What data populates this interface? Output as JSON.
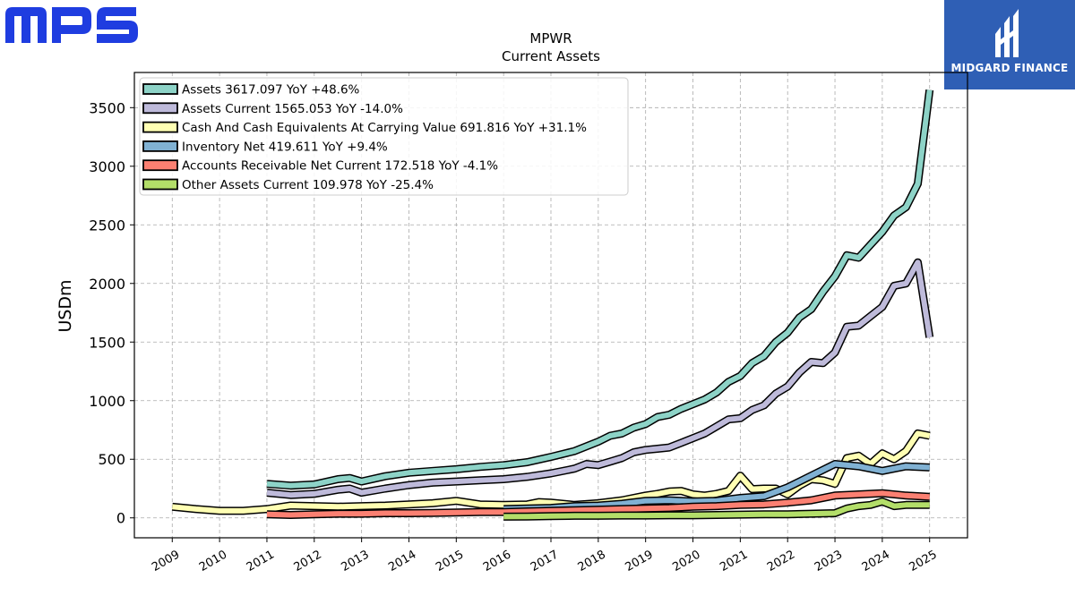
{
  "logos": {
    "mps": "MPS",
    "midgard": "MIDGARD FINANCE"
  },
  "chart_data": {
    "type": "line",
    "title": "MPWR",
    "subtitle": "Current  Assets",
    "xlabel": "",
    "ylabel": "USDm",
    "ylim": [
      -170,
      3800
    ],
    "xlim": [
      2008.2,
      2025.8
    ],
    "yticks": [
      0,
      500,
      1000,
      1500,
      2000,
      2500,
      3000,
      3500
    ],
    "xticks": [
      2009,
      2010,
      2011,
      2012,
      2013,
      2014,
      2015,
      2016,
      2017,
      2018,
      2019,
      2020,
      2021,
      2022,
      2023,
      2024,
      2025
    ],
    "grid": true,
    "legend_position": "top-left",
    "series": [
      {
        "name": "Assets  3617.097 YoY +48.6%",
        "color": "#8dd3c7",
        "points": [
          [
            2011.0,
            290
          ],
          [
            2011.5,
            275
          ],
          [
            2012.0,
            285
          ],
          [
            2012.5,
            330
          ],
          [
            2012.75,
            340
          ],
          [
            2013.0,
            310
          ],
          [
            2013.5,
            355
          ],
          [
            2014.0,
            385
          ],
          [
            2014.5,
            400
          ],
          [
            2015.0,
            415
          ],
          [
            2015.5,
            435
          ],
          [
            2016.0,
            450
          ],
          [
            2016.5,
            475
          ],
          [
            2017.0,
            520
          ],
          [
            2017.5,
            570
          ],
          [
            2018.0,
            650
          ],
          [
            2018.25,
            700
          ],
          [
            2018.5,
            720
          ],
          [
            2018.75,
            770
          ],
          [
            2019.0,
            800
          ],
          [
            2019.25,
            860
          ],
          [
            2019.5,
            880
          ],
          [
            2019.75,
            930
          ],
          [
            2020.0,
            970
          ],
          [
            2020.25,
            1010
          ],
          [
            2020.5,
            1070
          ],
          [
            2020.75,
            1160
          ],
          [
            2021.0,
            1210
          ],
          [
            2021.25,
            1320
          ],
          [
            2021.5,
            1380
          ],
          [
            2021.75,
            1500
          ],
          [
            2022.0,
            1580
          ],
          [
            2022.25,
            1710
          ],
          [
            2022.5,
            1780
          ],
          [
            2022.75,
            1930
          ],
          [
            2023.0,
            2060
          ],
          [
            2023.25,
            2240
          ],
          [
            2023.5,
            2220
          ],
          [
            2023.75,
            2330
          ],
          [
            2024.0,
            2440
          ],
          [
            2024.25,
            2580
          ],
          [
            2024.5,
            2650
          ],
          [
            2024.75,
            2850
          ],
          [
            2025.0,
            3650
          ]
        ]
      },
      {
        "name": "Assets Current  1565.053 YoY -14.0%",
        "color": "#bebada",
        "points": [
          [
            2011.0,
            215
          ],
          [
            2011.5,
            195
          ],
          [
            2012.0,
            205
          ],
          [
            2012.5,
            240
          ],
          [
            2012.75,
            250
          ],
          [
            2013.0,
            215
          ],
          [
            2013.5,
            250
          ],
          [
            2014.0,
            280
          ],
          [
            2014.5,
            300
          ],
          [
            2015.0,
            310
          ],
          [
            2015.5,
            320
          ],
          [
            2016.0,
            330
          ],
          [
            2016.5,
            350
          ],
          [
            2017.0,
            380
          ],
          [
            2017.5,
            420
          ],
          [
            2017.75,
            460
          ],
          [
            2018.0,
            450
          ],
          [
            2018.25,
            480
          ],
          [
            2018.5,
            510
          ],
          [
            2018.75,
            560
          ],
          [
            2019.0,
            580
          ],
          [
            2019.25,
            590
          ],
          [
            2019.5,
            600
          ],
          [
            2019.75,
            640
          ],
          [
            2020.0,
            680
          ],
          [
            2020.25,
            720
          ],
          [
            2020.5,
            780
          ],
          [
            2020.75,
            840
          ],
          [
            2021.0,
            850
          ],
          [
            2021.25,
            920
          ],
          [
            2021.5,
            960
          ],
          [
            2021.75,
            1060
          ],
          [
            2022.0,
            1120
          ],
          [
            2022.25,
            1240
          ],
          [
            2022.5,
            1330
          ],
          [
            2022.75,
            1320
          ],
          [
            2023.0,
            1410
          ],
          [
            2023.25,
            1630
          ],
          [
            2023.5,
            1640
          ],
          [
            2023.75,
            1720
          ],
          [
            2024.0,
            1800
          ],
          [
            2024.25,
            1980
          ],
          [
            2024.5,
            2000
          ],
          [
            2024.75,
            2180
          ],
          [
            2025.0,
            1540
          ]
        ]
      },
      {
        "name": "Cash And Cash Equivalents At Carrying Value  691.816 YoY +31.1%",
        "color": "#ffffb3",
        "points": [
          [
            2009.0,
            95
          ],
          [
            2009.5,
            75
          ],
          [
            2010.0,
            60
          ],
          [
            2010.5,
            60
          ],
          [
            2011.0,
            75
          ],
          [
            2011.5,
            105
          ],
          [
            2012.0,
            100
          ],
          [
            2012.5,
            95
          ],
          [
            2013.0,
            100
          ],
          [
            2013.5,
            105
          ],
          [
            2014.0,
            115
          ],
          [
            2014.5,
            125
          ],
          [
            2015.0,
            145
          ],
          [
            2015.5,
            115
          ],
          [
            2016.0,
            110
          ],
          [
            2016.5,
            115
          ],
          [
            2016.75,
            135
          ],
          [
            2017.0,
            130
          ],
          [
            2017.5,
            110
          ],
          [
            2018.0,
            125
          ],
          [
            2018.5,
            150
          ],
          [
            2019.0,
            190
          ],
          [
            2019.25,
            205
          ],
          [
            2019.5,
            225
          ],
          [
            2019.75,
            230
          ],
          [
            2020.0,
            200
          ],
          [
            2020.25,
            190
          ],
          [
            2020.5,
            205
          ],
          [
            2020.75,
            230
          ],
          [
            2021.0,
            360
          ],
          [
            2021.25,
            245
          ],
          [
            2021.5,
            250
          ],
          [
            2021.75,
            250
          ],
          [
            2022.0,
            200
          ],
          [
            2022.25,
            275
          ],
          [
            2022.5,
            330
          ],
          [
            2022.75,
            320
          ],
          [
            2023.0,
            290
          ],
          [
            2023.25,
            510
          ],
          [
            2023.5,
            530
          ],
          [
            2023.75,
            460
          ],
          [
            2024.0,
            550
          ],
          [
            2024.25,
            500
          ],
          [
            2024.5,
            570
          ],
          [
            2024.75,
            720
          ],
          [
            2025.0,
            700
          ]
        ]
      },
      {
        "name": "Inventory Net  419.611 YoY +9.4%",
        "color": "#80b1d3",
        "points": [
          [
            2016.0,
            75
          ],
          [
            2016.5,
            80
          ],
          [
            2017.0,
            85
          ],
          [
            2017.5,
            100
          ],
          [
            2018.0,
            105
          ],
          [
            2018.5,
            120
          ],
          [
            2019.0,
            145
          ],
          [
            2019.5,
            150
          ],
          [
            2020.0,
            140
          ],
          [
            2020.5,
            145
          ],
          [
            2021.0,
            170
          ],
          [
            2021.5,
            185
          ],
          [
            2022.0,
            260
          ],
          [
            2022.5,
            360
          ],
          [
            2023.0,
            460
          ],
          [
            2023.5,
            440
          ],
          [
            2024.0,
            400
          ],
          [
            2024.5,
            440
          ],
          [
            2025.0,
            430
          ]
        ]
      },
      {
        "name": "Accounts Receivable Net Current  172.518 YoY -4.1%",
        "color": "#fb8072",
        "points": [
          [
            2011.0,
            30
          ],
          [
            2011.5,
            25
          ],
          [
            2012.0,
            30
          ],
          [
            2012.5,
            35
          ],
          [
            2013.0,
            35
          ],
          [
            2013.5,
            40
          ],
          [
            2014.0,
            40
          ],
          [
            2014.5,
            42
          ],
          [
            2015.0,
            45
          ],
          [
            2015.5,
            50
          ],
          [
            2016.0,
            50
          ],
          [
            2016.5,
            55
          ],
          [
            2017.0,
            60
          ],
          [
            2017.5,
            65
          ],
          [
            2018.0,
            70
          ],
          [
            2018.5,
            75
          ],
          [
            2019.0,
            80
          ],
          [
            2019.5,
            85
          ],
          [
            2020.0,
            95
          ],
          [
            2020.5,
            100
          ],
          [
            2021.0,
            110
          ],
          [
            2021.5,
            115
          ],
          [
            2022.0,
            130
          ],
          [
            2022.5,
            150
          ],
          [
            2023.0,
            190
          ],
          [
            2023.5,
            200
          ],
          [
            2024.0,
            210
          ],
          [
            2024.5,
            190
          ],
          [
            2025.0,
            180
          ]
        ]
      },
      {
        "name": "Other Assets Current  109.978 YoY -25.4%",
        "color": "#b3de69",
        "points": [
          [
            2016.0,
            10
          ],
          [
            2016.5,
            12
          ],
          [
            2017.0,
            15
          ],
          [
            2017.5,
            18
          ],
          [
            2018.0,
            18
          ],
          [
            2018.5,
            20
          ],
          [
            2019.0,
            20
          ],
          [
            2019.5,
            22
          ],
          [
            2020.0,
            22
          ],
          [
            2020.5,
            25
          ],
          [
            2021.0,
            28
          ],
          [
            2021.5,
            30
          ],
          [
            2022.0,
            30
          ],
          [
            2022.5,
            35
          ],
          [
            2023.0,
            40
          ],
          [
            2023.25,
            80
          ],
          [
            2023.5,
            100
          ],
          [
            2023.75,
            110
          ],
          [
            2024.0,
            140
          ],
          [
            2024.25,
            100
          ],
          [
            2024.5,
            110
          ],
          [
            2025.0,
            110
          ]
        ]
      }
    ]
  }
}
